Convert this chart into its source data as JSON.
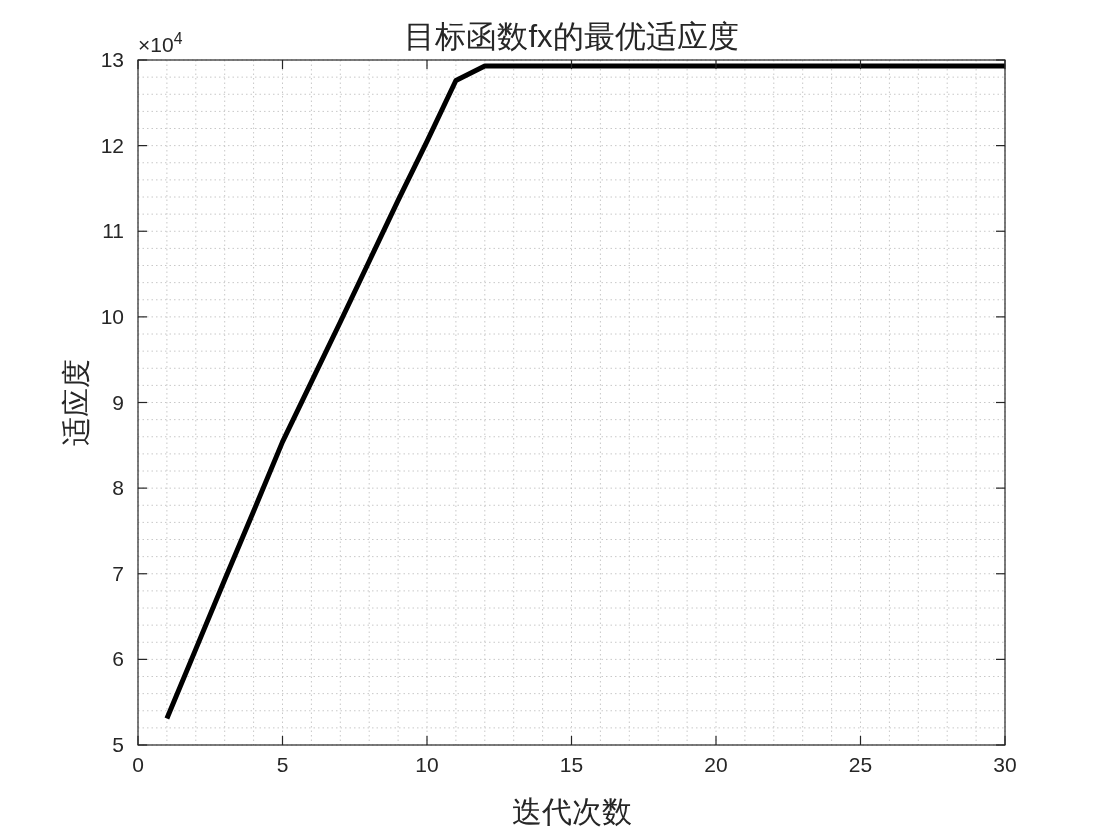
{
  "chart_data": {
    "type": "line",
    "title": "目标函数fx的最优适应度",
    "xlabel": "迭代次数",
    "ylabel": "适应度",
    "annotations": [
      "×10$^{4}$"
    ],
    "x": [
      1,
      2,
      3,
      4,
      5,
      6,
      7,
      8,
      9,
      10,
      11,
      12,
      13,
      14,
      15,
      16,
      17,
      18,
      19,
      20,
      21,
      22,
      23,
      24,
      25,
      26,
      27,
      28,
      29,
      30
    ],
    "series": [
      {
        "color": "#000000",
        "values": [
          5.31,
          6.12,
          6.93,
          7.73,
          8.54,
          9.24,
          9.94,
          10.65,
          11.36,
          12.05,
          12.76,
          12.93,
          12.93,
          12.93,
          12.93,
          12.93,
          12.93,
          12.93,
          12.93,
          12.93,
          12.93,
          12.93,
          12.93,
          12.93,
          12.93,
          12.93,
          12.93,
          12.93,
          12.93,
          12.93
        ]
      }
    ],
    "xlim": [
      0,
      30
    ],
    "xticks": [
      0,
      5,
      10,
      15,
      20,
      25,
      30
    ],
    "ylim": [
      5,
      13
    ],
    "yticks": [
      5,
      6,
      7,
      8,
      9,
      10,
      11,
      12,
      13
    ],
    "grid": true,
    "line_style": "solid"
  }
}
